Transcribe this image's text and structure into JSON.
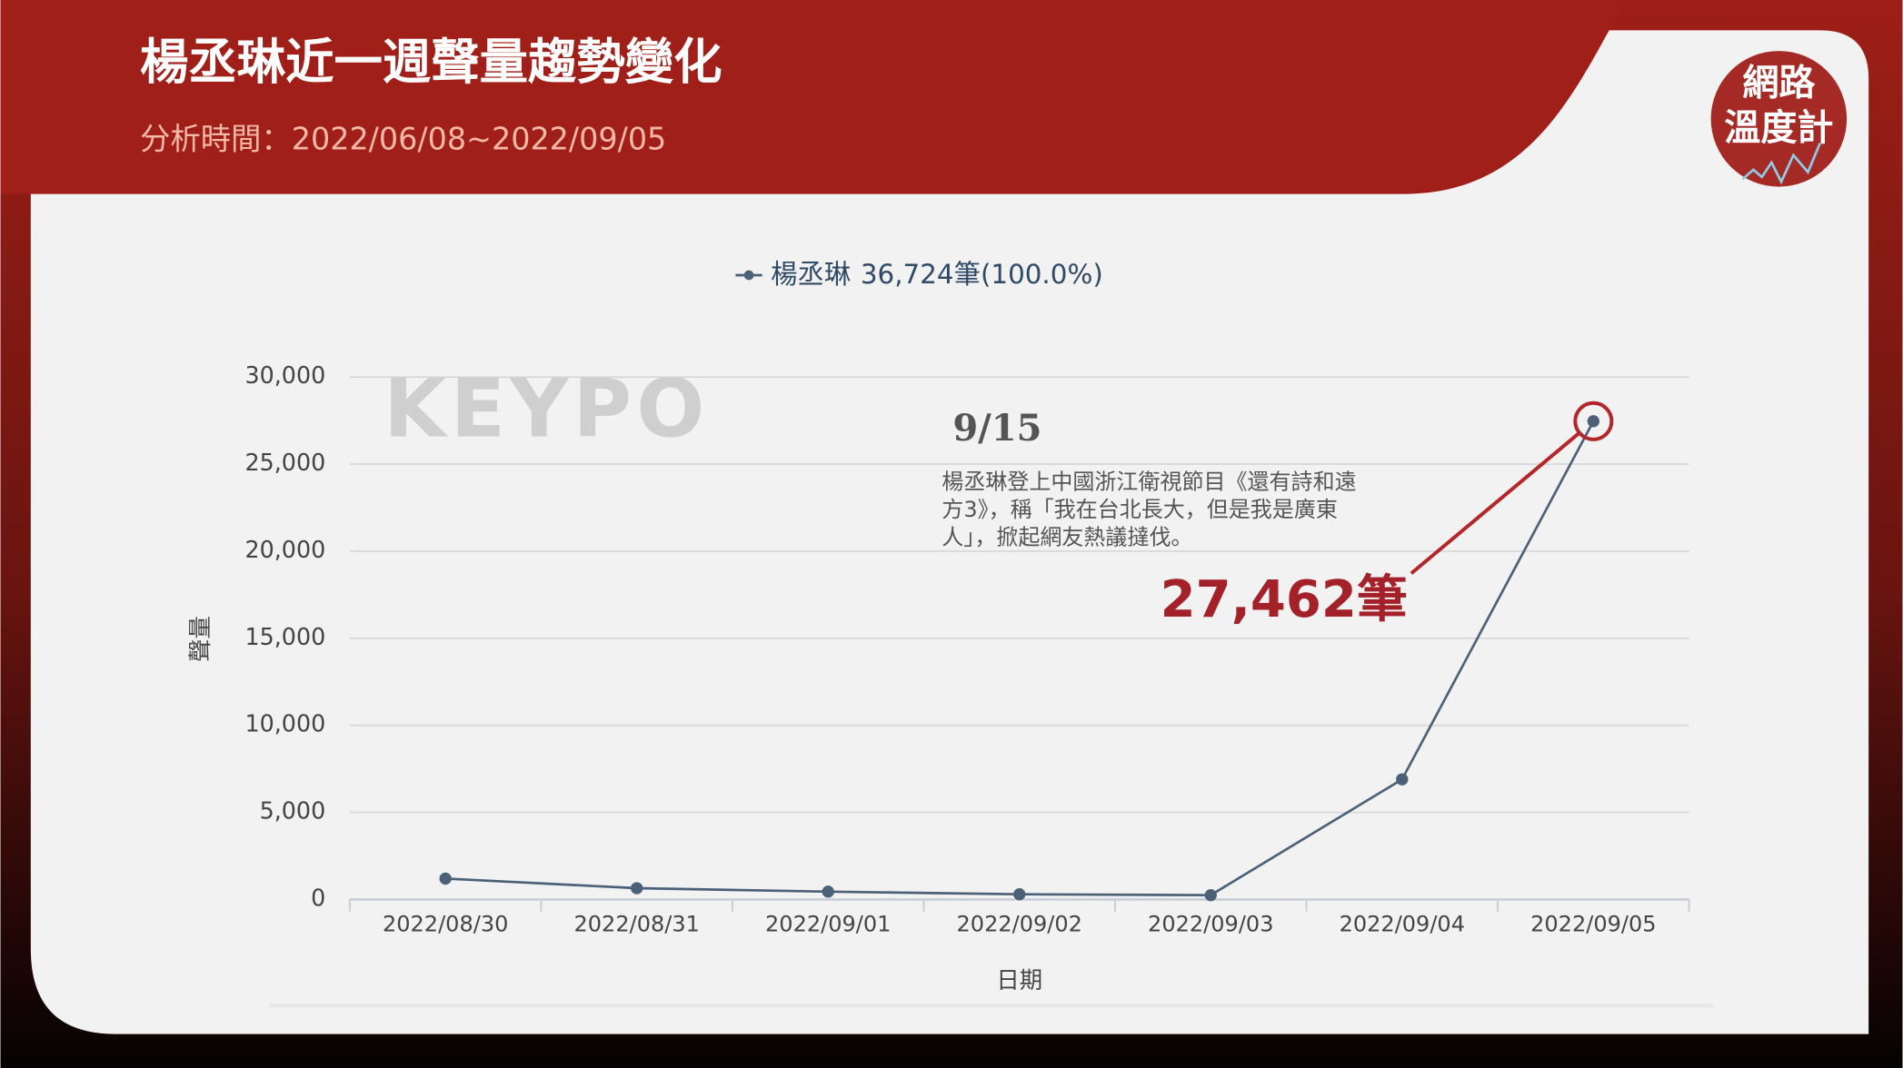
{
  "header": {
    "title": "楊丞琳近一週聲量趨勢變化",
    "subtitle": "分析時間：2022/06/08~2022/09/05",
    "logo_lines": [
      "網路",
      "溫度計"
    ],
    "watermark": "KEYPO"
  },
  "chart_data": {
    "type": "line",
    "categories": [
      "2022/08/30",
      "2022/08/31",
      "2022/09/01",
      "2022/09/02",
      "2022/09/03",
      "2022/09/04",
      "2022/09/05"
    ],
    "series": [
      {
        "name": "楊丞琳",
        "legend_note": "36,724筆(100.0%)",
        "color": "#4a6178",
        "values": [
          1200,
          650,
          450,
          300,
          250,
          6900,
          27462
        ],
        "value_labels": [
          null,
          null,
          null,
          null,
          null,
          null,
          "27,462筆"
        ]
      }
    ],
    "ylim": [
      0,
      30000
    ],
    "yticks": [
      0,
      {
        "value": 5000,
        "label": "5,000"
      },
      {
        "value": 10000,
        "label": "10,000"
      },
      {
        "value": 15000,
        "label": "15,000"
      },
      {
        "value": 20000,
        "label": "20,000"
      },
      {
        "value": 25000,
        "label": "25,000"
      },
      {
        "value": 30000,
        "label": "30,000"
      }
    ],
    "xlabel": "日期",
    "ylabel": "聲量",
    "grid": true,
    "annotation_title": "9/15",
    "annotation_lines": [
      "楊丞琳登上中國浙江衛視節目《還有詩和遠",
      "方3》，稱「我在台北長大，但是我是廣東",
      "人」，掀起網友熱議撻伐。"
    ]
  }
}
